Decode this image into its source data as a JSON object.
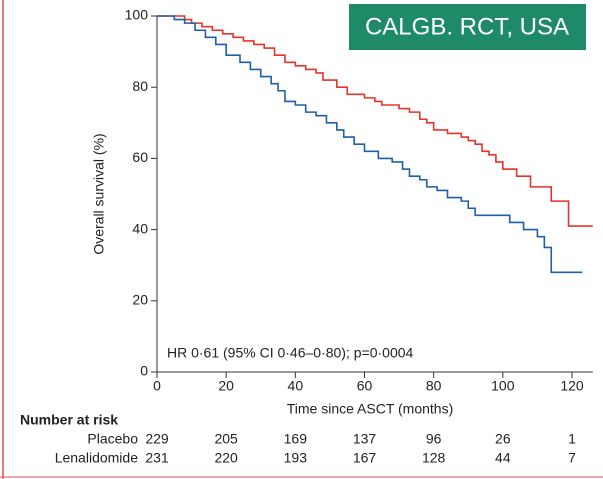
{
  "chart_data": {
    "type": "step",
    "badge": "CALGB. RCT, USA",
    "annotation": "HR 0·61 (95% CI 0·46–0·80); p=0·0004",
    "x_label": "Time since ASCT (months)",
    "y_label": "Overall survival (%)",
    "xlim": [
      0,
      126
    ],
    "ylim": [
      0,
      100
    ],
    "xticks": [
      0,
      20,
      40,
      60,
      80,
      100,
      120
    ],
    "yticks": [
      0,
      20,
      40,
      60,
      80,
      100
    ],
    "series": [
      {
        "color": "#e8332a",
        "x": [
          0,
          6,
          8,
          10,
          13,
          16,
          19,
          22,
          25,
          28,
          31,
          34,
          37,
          40,
          43,
          46,
          48,
          52,
          55,
          60,
          63,
          65,
          70,
          73,
          76,
          78,
          80,
          84,
          88,
          90,
          92,
          94,
          96,
          98,
          100,
          104,
          108,
          112,
          114,
          118,
          119,
          126
        ],
        "values": [
          100,
          100,
          99,
          98,
          97,
          96,
          95,
          94,
          93,
          92,
          91,
          89,
          87,
          86,
          85,
          84,
          82,
          80,
          78,
          77,
          76,
          75,
          74,
          73,
          71,
          70,
          68,
          67,
          66,
          65,
          64,
          62,
          61,
          59,
          57,
          55,
          52,
          52,
          48,
          48,
          41,
          41
        ]
      },
      {
        "color": "#1f5fa8",
        "x": [
          0,
          5,
          8,
          11,
          14,
          17,
          20,
          24,
          27,
          30,
          33,
          35,
          37,
          40,
          43,
          46,
          49,
          52,
          54,
          57,
          60,
          64,
          68,
          71,
          73,
          76,
          78,
          81,
          84,
          88,
          90,
          92,
          98,
          102,
          106,
          110,
          112,
          114,
          119,
          123
        ],
        "values": [
          100,
          99,
          98,
          96,
          94,
          92,
          89,
          87,
          85,
          83,
          81,
          79,
          76,
          75,
          73,
          72,
          70,
          68,
          66,
          64,
          62,
          60,
          59,
          57,
          55,
          54,
          52,
          51,
          49,
          48,
          46,
          44,
          44,
          42,
          40,
          38,
          35,
          28,
          28,
          28
        ]
      }
    ],
    "risk_table": {
      "title": "Number at risk",
      "rows": [
        {
          "label": "Placebo",
          "counts": [
            229,
            205,
            169,
            137,
            96,
            26,
            1
          ]
        },
        {
          "label": "Lenalidomide",
          "counts": [
            231,
            220,
            193,
            167,
            128,
            44,
            7
          ]
        }
      ]
    }
  }
}
